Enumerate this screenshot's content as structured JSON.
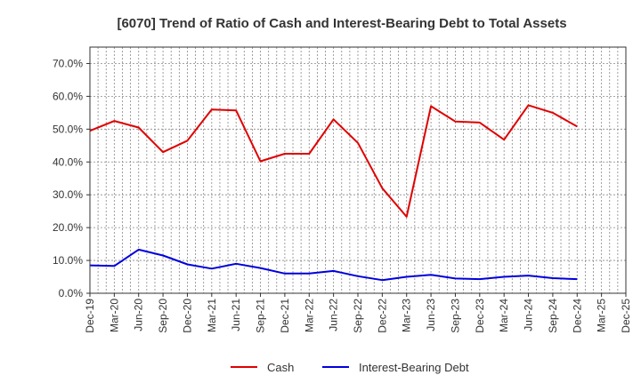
{
  "chart_data": {
    "type": "line",
    "title": "[6070]  Trend of Ratio of Cash and Interest-Bearing Debt to Total Assets",
    "xlabel": "",
    "ylabel": "",
    "ylim": [
      0,
      75
    ],
    "yticks": [
      0,
      10,
      20,
      30,
      40,
      50,
      60,
      70
    ],
    "ytick_labels": [
      "0.0%",
      "10.0%",
      "20.0%",
      "30.0%",
      "40.0%",
      "50.0%",
      "60.0%",
      "70.0%"
    ],
    "x_tick_labels": [
      "Dec-19",
      "Mar-20",
      "Jun-20",
      "Sep-20",
      "Dec-20",
      "Mar-21",
      "Jun-21",
      "Sep-21",
      "Dec-21",
      "Mar-22",
      "Jun-22",
      "Sep-22",
      "Dec-22",
      "Mar-23",
      "Jun-23",
      "Sep-23",
      "Dec-23",
      "Mar-24",
      "Jun-24",
      "Sep-24",
      "Dec-24",
      "Mar-25",
      "Dec-25"
    ],
    "categories": [
      "Dec-19",
      "Mar-20",
      "Jun-20",
      "Sep-20",
      "Dec-20",
      "Mar-21",
      "Jun-21",
      "Sep-21",
      "Dec-21",
      "Mar-22",
      "Jun-22",
      "Sep-22",
      "Dec-22",
      "Mar-23",
      "Jun-23",
      "Sep-23",
      "Dec-23",
      "Mar-24",
      "Jun-24",
      "Sep-24",
      "Dec-24"
    ],
    "series": [
      {
        "name": "Cash",
        "color": "#e00000",
        "values": [
          49.5,
          52.5,
          50.5,
          43.0,
          46.5,
          56.0,
          55.7,
          40.2,
          42.5,
          42.5,
          53.0,
          45.8,
          32.0,
          23.3,
          57.0,
          52.3,
          52.0,
          46.8,
          57.3,
          55.0,
          50.8
        ]
      },
      {
        "name": "Interest-Bearing Debt",
        "color": "#0000dd",
        "values": [
          8.5,
          8.3,
          13.3,
          11.5,
          8.8,
          7.5,
          9.0,
          7.7,
          6.0,
          6.0,
          6.8,
          5.2,
          4.0,
          5.0,
          5.6,
          4.5,
          4.3,
          5.0,
          5.4,
          4.6,
          4.3
        ]
      }
    ],
    "grid": true,
    "legend_position": "bottom"
  }
}
